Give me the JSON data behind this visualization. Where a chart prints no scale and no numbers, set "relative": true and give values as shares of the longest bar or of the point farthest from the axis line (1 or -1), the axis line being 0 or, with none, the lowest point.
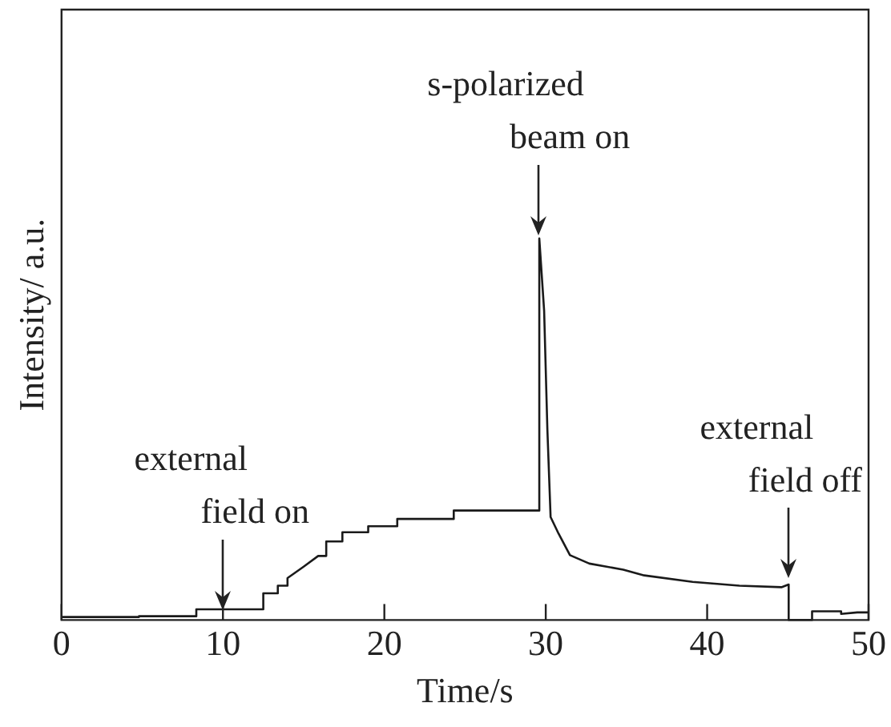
{
  "chart_data": {
    "type": "line",
    "relative": true,
    "xlabel": "Time/s",
    "ylabel": "Intensity/ a.u.",
    "xlim": [
      0,
      50
    ],
    "xticks": [
      0,
      10,
      20,
      30,
      40,
      50
    ],
    "grid": false,
    "legend": false,
    "marker": "none",
    "line_style": "solid",
    "series": [
      {
        "color": "#1a1a1a",
        "x": [
          0,
          4.8,
          4.8,
          8.35,
          8.35,
          12.5,
          12.5,
          13.4,
          13.4,
          14,
          14,
          15,
          15.9,
          16.4,
          16.4,
          17.4,
          17.4,
          19,
          19,
          20.8,
          20.8,
          24.3,
          24.3,
          29.6,
          29.6,
          29.9,
          30.1,
          30.3,
          30.8,
          31.5,
          32.7,
          34.8,
          36.1,
          39.1,
          42,
          44.6,
          45.05,
          45.05,
          46.5,
          46.5,
          48.3,
          48.3,
          49.3,
          50
        ],
        "values": [
          0.008,
          0.008,
          0.01,
          0.01,
          0.028,
          0.028,
          0.07,
          0.07,
          0.09,
          0.09,
          0.11,
          0.14,
          0.168,
          0.168,
          0.206,
          0.206,
          0.23,
          0.23,
          0.246,
          0.246,
          0.265,
          0.265,
          0.287,
          0.287,
          1.0,
          0.81,
          0.5,
          0.27,
          0.226,
          0.17,
          0.148,
          0.132,
          0.117,
          0.1,
          0.09,
          0.086,
          0.093,
          0,
          0,
          0.023,
          0.023,
          0.016,
          0.02,
          0.02
        ]
      }
    ],
    "annotations": [
      {
        "text": "external\nfield on",
        "x": 10,
        "y": 0.028
      },
      {
        "text": "s-polarized\nbeam on",
        "x": 29.5,
        "y": 1.01
      },
      {
        "text": "external\nfield off",
        "x": 45.05,
        "y": 0.11
      }
    ]
  }
}
